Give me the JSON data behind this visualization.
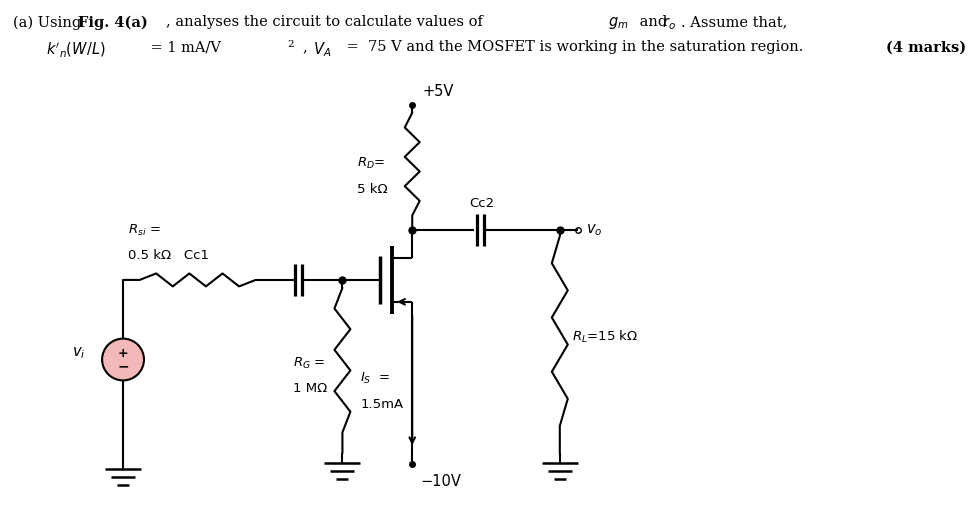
{
  "bg_color": "#ffffff",
  "source_fill": "#f5b8b8",
  "line_color": "#000000",
  "header_line1_plain": "(a) Using ",
  "header_fig": "Fig. 4(a)",
  "header_line1_rest": ", analyses the circuit to calculate values of ",
  "header_gm": "$g_m$",
  "header_and": " and ",
  "header_ro": "$r_o$",
  "header_end": ". Assume that,",
  "header_line2": "$k'_n(W/L) = 1$ mA/V$^2$, $V_A$ =  75 V and the MOSFET is working in the saturation region.",
  "marks": "(4 marks)",
  "vplus_label": "+5V",
  "vminus_label": "−10V",
  "rd_label1": "$R_D$=",
  "rd_label2": "5 kΩ",
  "cc2_label": "Cc2",
  "vo_label": "$v_o$",
  "rsi_label1": "$R_{si}$ =",
  "rsi_label2": "0.5 kΩ",
  "cc1_label": "Cc1",
  "rg_label1": "$R_G$ =",
  "rg_label2": "1 MΩ",
  "is_label1": "$I_S$  =",
  "is_label2": "1.5mA",
  "rl_label": "$R_L$=15 kΩ",
  "vi_label": "$v_i$"
}
